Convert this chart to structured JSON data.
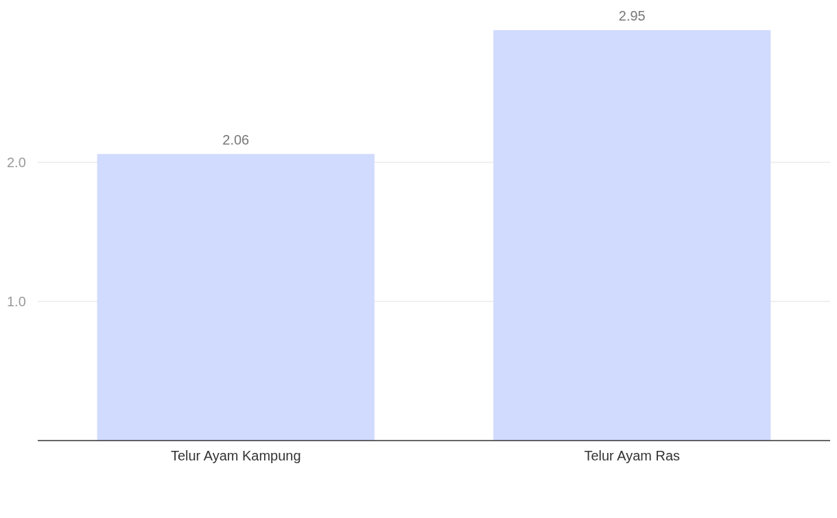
{
  "chart_data": {
    "type": "bar",
    "categories": [
      "Telur Ayam Kampung",
      "Telur Ayam Ras"
    ],
    "values": [
      2.06,
      2.95
    ],
    "color": "#d1dbfd",
    "ylim": [
      0,
      2.95
    ],
    "yticks": [
      {
        "value": 1,
        "label": "1.0"
      },
      {
        "value": 2,
        "label": "2.0"
      }
    ],
    "grid": "y",
    "data_labels": true
  }
}
